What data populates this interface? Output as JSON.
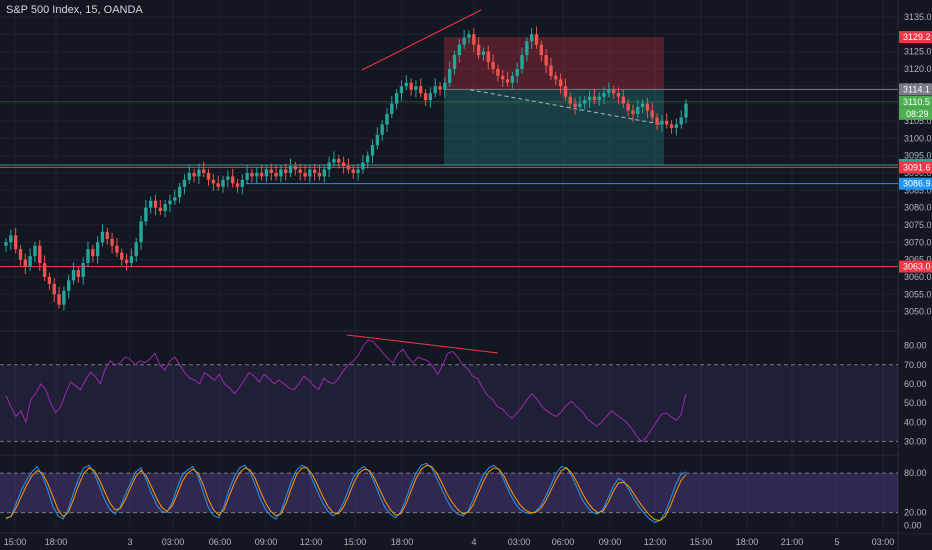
{
  "header": {
    "title": "S&P 500 Index, 15, OANDA"
  },
  "chart_data": [
    {
      "type": "candlestick",
      "pane": "price",
      "y_ticks": [
        "3135.0",
        "3130.0",
        "3125.0",
        "3120.0",
        "3115.0",
        "3110.0",
        "3105.0",
        "3100.0",
        "3095.0",
        "3090.0",
        "3085.0",
        "3080.0",
        "3075.0",
        "3070.0",
        "3065.0",
        "3060.0",
        "3055.0",
        "3050.0"
      ],
      "ylim": [
        3047,
        3137
      ],
      "closes": [
        3070,
        3072,
        3068,
        3065,
        3063,
        3066,
        3069,
        3064,
        3060,
        3058,
        3055,
        3052,
        3056,
        3059,
        3062,
        3060,
        3064,
        3068,
        3066,
        3070,
        3073,
        3071,
        3069,
        3067,
        3065,
        3064,
        3066,
        3070,
        3076,
        3080,
        3082,
        3080,
        3079,
        3081,
        3082,
        3083,
        3086,
        3088,
        3090,
        3089,
        3091,
        3090,
        3088,
        3087,
        3086,
        3088,
        3089,
        3087,
        3086,
        3088,
        3090,
        3089,
        3090,
        3089,
        3091,
        3090,
        3089,
        3091,
        3090,
        3092,
        3091,
        3090,
        3089,
        3091,
        3090,
        3089,
        3091,
        3093,
        3094,
        3093,
        3092,
        3091,
        3090,
        3091,
        3093,
        3095,
        3098,
        3101,
        3104,
        3107,
        3110,
        3113,
        3115,
        3116,
        3114,
        3115,
        3113,
        3111,
        3113,
        3115,
        3114,
        3116,
        3120,
        3124,
        3127,
        3129,
        3130,
        3127,
        3124,
        3125,
        3122,
        3120,
        3118,
        3117,
        3116,
        3118,
        3120,
        3124,
        3128,
        3130,
        3127,
        3124,
        3121,
        3118,
        3117,
        3115,
        3112,
        3110,
        3109,
        3110,
        3111,
        3112,
        3111,
        3112,
        3113,
        3114,
        3113,
        3112,
        3110,
        3108,
        3107,
        3109,
        3110,
        3108,
        3106,
        3104,
        3105,
        3104,
        3103,
        3104,
        3106,
        3110
      ],
      "overlays": {
        "trendline_top": [
          [
            3127.5,
            3134.5
          ]
        ],
        "horizontal_lines": [
          {
            "label": "3092.3",
            "value": 3092.3,
            "color": "#26a69a"
          },
          {
            "label": "3091.6",
            "value": 3091.6,
            "color": "#f23645"
          },
          {
            "label": "3086.9",
            "value": 3086.9,
            "color": "#2196f3"
          },
          {
            "label": "3063.0",
            "value": 3063.0,
            "color": "#f23645"
          }
        ],
        "position_tool": {
          "stop": 3129.2,
          "entry": 3114.1,
          "target": 3092.3
        },
        "current_price": {
          "label": "3110.5",
          "value": 3110.5,
          "color": "#4caf50"
        },
        "countdown": "08:29",
        "price_tags": [
          {
            "label": "3129.2",
            "value": 3129.2,
            "color": "#f23645"
          },
          {
            "label": "3114.1",
            "value": 3114.1,
            "color": "#787b86"
          }
        ]
      }
    },
    {
      "type": "line",
      "pane": "rsi",
      "y_ticks": [
        "80.00",
        "70.00",
        "60.00",
        "50.00",
        "40.00",
        "30.00"
      ],
      "ylim": [
        25,
        85
      ],
      "band": [
        30,
        70
      ],
      "values": [
        54,
        48,
        43,
        46,
        40,
        52,
        55,
        60,
        57,
        50,
        45,
        48,
        55,
        61,
        59,
        57,
        62,
        66,
        64,
        60,
        68,
        72,
        70,
        71,
        74,
        73,
        70,
        72,
        71,
        73,
        76,
        70,
        67,
        72,
        74,
        70,
        66,
        63,
        62,
        60,
        66,
        64,
        62,
        65,
        60,
        58,
        55,
        58,
        62,
        66,
        64,
        61,
        65,
        63,
        60,
        62,
        60,
        58,
        57,
        60,
        64,
        62,
        59,
        57,
        63,
        61,
        60,
        63,
        67,
        70,
        72,
        75,
        80,
        83,
        82,
        79,
        76,
        73,
        71,
        76,
        78,
        74,
        71,
        74,
        73,
        72,
        69,
        65,
        70,
        76,
        77,
        74,
        70,
        68,
        64,
        63,
        58,
        54,
        52,
        48,
        47,
        44,
        42,
        45,
        48,
        52,
        55,
        52,
        48,
        46,
        44,
        43,
        46,
        49,
        51,
        48,
        46,
        42,
        40,
        38,
        40,
        43,
        46,
        44,
        42,
        40,
        37,
        33,
        30,
        32,
        36,
        40,
        44,
        45,
        43,
        41,
        44,
        55
      ]
    },
    {
      "type": "line",
      "pane": "stochastic",
      "y_ticks": [
        "80.00",
        "20.00",
        "0.00"
      ],
      "ylim": [
        -5,
        100
      ],
      "band": [
        20,
        80
      ],
      "series": [
        {
          "color": "#2196f3",
          "values": [
            10,
            15,
            35,
            55,
            70,
            82,
            90,
            76,
            55,
            30,
            15,
            10,
            25,
            50,
            72,
            88,
            92,
            80,
            60,
            40,
            25,
            18,
            28,
            48,
            65,
            82,
            88,
            70,
            50,
            32,
            22,
            20,
            35,
            58,
            78,
            85,
            90,
            75,
            50,
            28,
            15,
            12,
            30,
            55,
            75,
            88,
            92,
            82,
            62,
            40,
            25,
            15,
            10,
            22,
            45,
            68,
            85,
            92,
            88,
            70,
            52,
            35,
            22,
            15,
            20,
            35,
            55,
            75,
            85,
            90,
            82,
            65,
            45,
            28,
            18,
            12,
            20,
            40,
            62,
            80,
            92,
            95,
            88,
            72,
            55,
            38,
            25,
            18,
            15,
            22,
            40,
            60,
            78,
            88,
            92,
            85,
            68,
            50,
            35,
            25,
            20,
            18,
            22,
            30,
            45,
            62,
            80,
            90,
            88,
            75,
            58,
            40,
            28,
            20,
            18,
            25,
            42,
            60,
            72,
            68,
            55,
            40,
            28,
            18,
            10,
            5,
            8,
            20,
            40,
            62,
            78,
            82
          ]
        },
        {
          "color": "#ff9800",
          "values": [
            12,
            14,
            28,
            45,
            62,
            76,
            84,
            80,
            65,
            45,
            25,
            14,
            20,
            40,
            62,
            80,
            88,
            84,
            70,
            52,
            35,
            24,
            26,
            40,
            58,
            75,
            84,
            76,
            60,
            42,
            28,
            22,
            30,
            48,
            68,
            80,
            86,
            80,
            62,
            40,
            24,
            16,
            24,
            45,
            65,
            80,
            88,
            85,
            72,
            52,
            35,
            22,
            15,
            18,
            35,
            58,
            78,
            88,
            88,
            78,
            62,
            45,
            30,
            20,
            18,
            28,
            45,
            65,
            80,
            86,
            84,
            72,
            55,
            38,
            25,
            16,
            18,
            32,
            52,
            72,
            86,
            92,
            90,
            80,
            65,
            48,
            35,
            25,
            18,
            20,
            32,
            50,
            68,
            82,
            88,
            86,
            75,
            58,
            44,
            32,
            24,
            20,
            20,
            26,
            38,
            54,
            70,
            84,
            88,
            80,
            66,
            50,
            36,
            26,
            20,
            22,
            35,
            52,
            65,
            66,
            60,
            48,
            36,
            25,
            16,
            9,
            8,
            14,
            30,
            50,
            68,
            78
          ]
        }
      ]
    }
  ],
  "time_axis": [
    "15:00",
    "18:00",
    "3",
    "03:00",
    "06:00",
    "09:00",
    "12:00",
    "15:00",
    "18:00",
    "4",
    "03:00",
    "06:00",
    "09:00",
    "12:00",
    "15:00",
    "18:00",
    "21:00",
    "5",
    "03:00"
  ]
}
